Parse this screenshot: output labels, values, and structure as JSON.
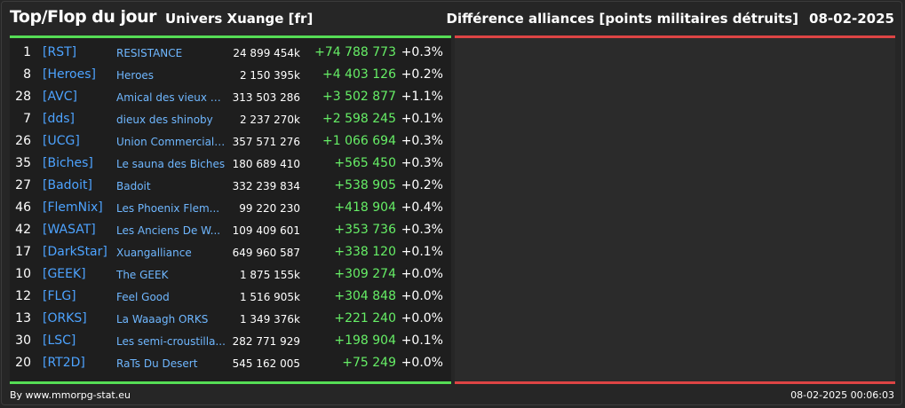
{
  "header": {
    "title": "Top/Flop du jour",
    "universe": "Univers Xuange [fr]",
    "ranking_title": "Différence alliances [points militaires détruits]",
    "date": "08-02-2025"
  },
  "colors": {
    "background": "#262626",
    "top_accent": "#55dd55",
    "flop_accent": "#dd4444",
    "link": "#4da3ff",
    "positive": "#66ee66"
  },
  "top_rows": [
    {
      "rank": "1",
      "tag": "[RST]",
      "name": "RESISTANCE",
      "points": "24 899 454k",
      "diff": "+74 788 773",
      "pct": "+0.3%"
    },
    {
      "rank": "8",
      "tag": "[Heroes]",
      "name": "Heroes",
      "points": "2 150 395k",
      "diff": "+4 403 126",
      "pct": "+0.2%"
    },
    {
      "rank": "28",
      "tag": "[AVC]",
      "name": "Amical des vieux con",
      "points": "313 503 286",
      "diff": "+3 502 877",
      "pct": "+1.1%"
    },
    {
      "rank": "7",
      "tag": "[dds]",
      "name": "dieux des shinoby",
      "points": "2 237 270k",
      "diff": "+2 598 245",
      "pct": "+0.1%"
    },
    {
      "rank": "26",
      "tag": "[UCG]",
      "name": "Union Commerciale...",
      "points": "357 571 276",
      "diff": "+1 066 694",
      "pct": "+0.3%"
    },
    {
      "rank": "35",
      "tag": "[Biches]",
      "name": "Le sauna des Biches",
      "points": "180 689 410",
      "diff": "+565 450",
      "pct": "+0.3%"
    },
    {
      "rank": "27",
      "tag": "[Badoit]",
      "name": "Badoit",
      "points": "332 239 834",
      "diff": "+538 905",
      "pct": "+0.2%"
    },
    {
      "rank": "46",
      "tag": "[FlemNix]",
      "name": "Les Phoenix Flem...",
      "points": "99 220 230",
      "diff": "+418 904",
      "pct": "+0.4%"
    },
    {
      "rank": "42",
      "tag": "[WASAT]",
      "name": "Les Anciens De W...",
      "points": "109 409 601",
      "diff": "+353 736",
      "pct": "+0.3%"
    },
    {
      "rank": "17",
      "tag": "[DarkStar]",
      "name": "Xuangalliance",
      "points": "649 960 587",
      "diff": "+338 120",
      "pct": "+0.1%"
    },
    {
      "rank": "10",
      "tag": "[GEEK]",
      "name": "The GEEK",
      "points": "1 875 155k",
      "diff": "+309 274",
      "pct": "+0.0%"
    },
    {
      "rank": "12",
      "tag": "[FLG]",
      "name": "Feel Good",
      "points": "1 516 905k",
      "diff": "+304 848",
      "pct": "+0.0%"
    },
    {
      "rank": "13",
      "tag": "[ORKS]",
      "name": "La Waaagh ORKS",
      "points": "1 349 376k",
      "diff": "+221 240",
      "pct": "+0.0%"
    },
    {
      "rank": "30",
      "tag": "[LSC]",
      "name": "Les semi-croustilla...",
      "points": "282 771 929",
      "diff": "+198 904",
      "pct": "+0.1%"
    },
    {
      "rank": "20",
      "tag": "[RT2D]",
      "name": "RaTs Du Desert",
      "points": "545 162 005",
      "diff": "+75 249",
      "pct": "+0.0%"
    }
  ],
  "footer": {
    "credit": "By www.mmorpg-stat.eu",
    "timestamp": "08-02-2025 00:06:03"
  }
}
